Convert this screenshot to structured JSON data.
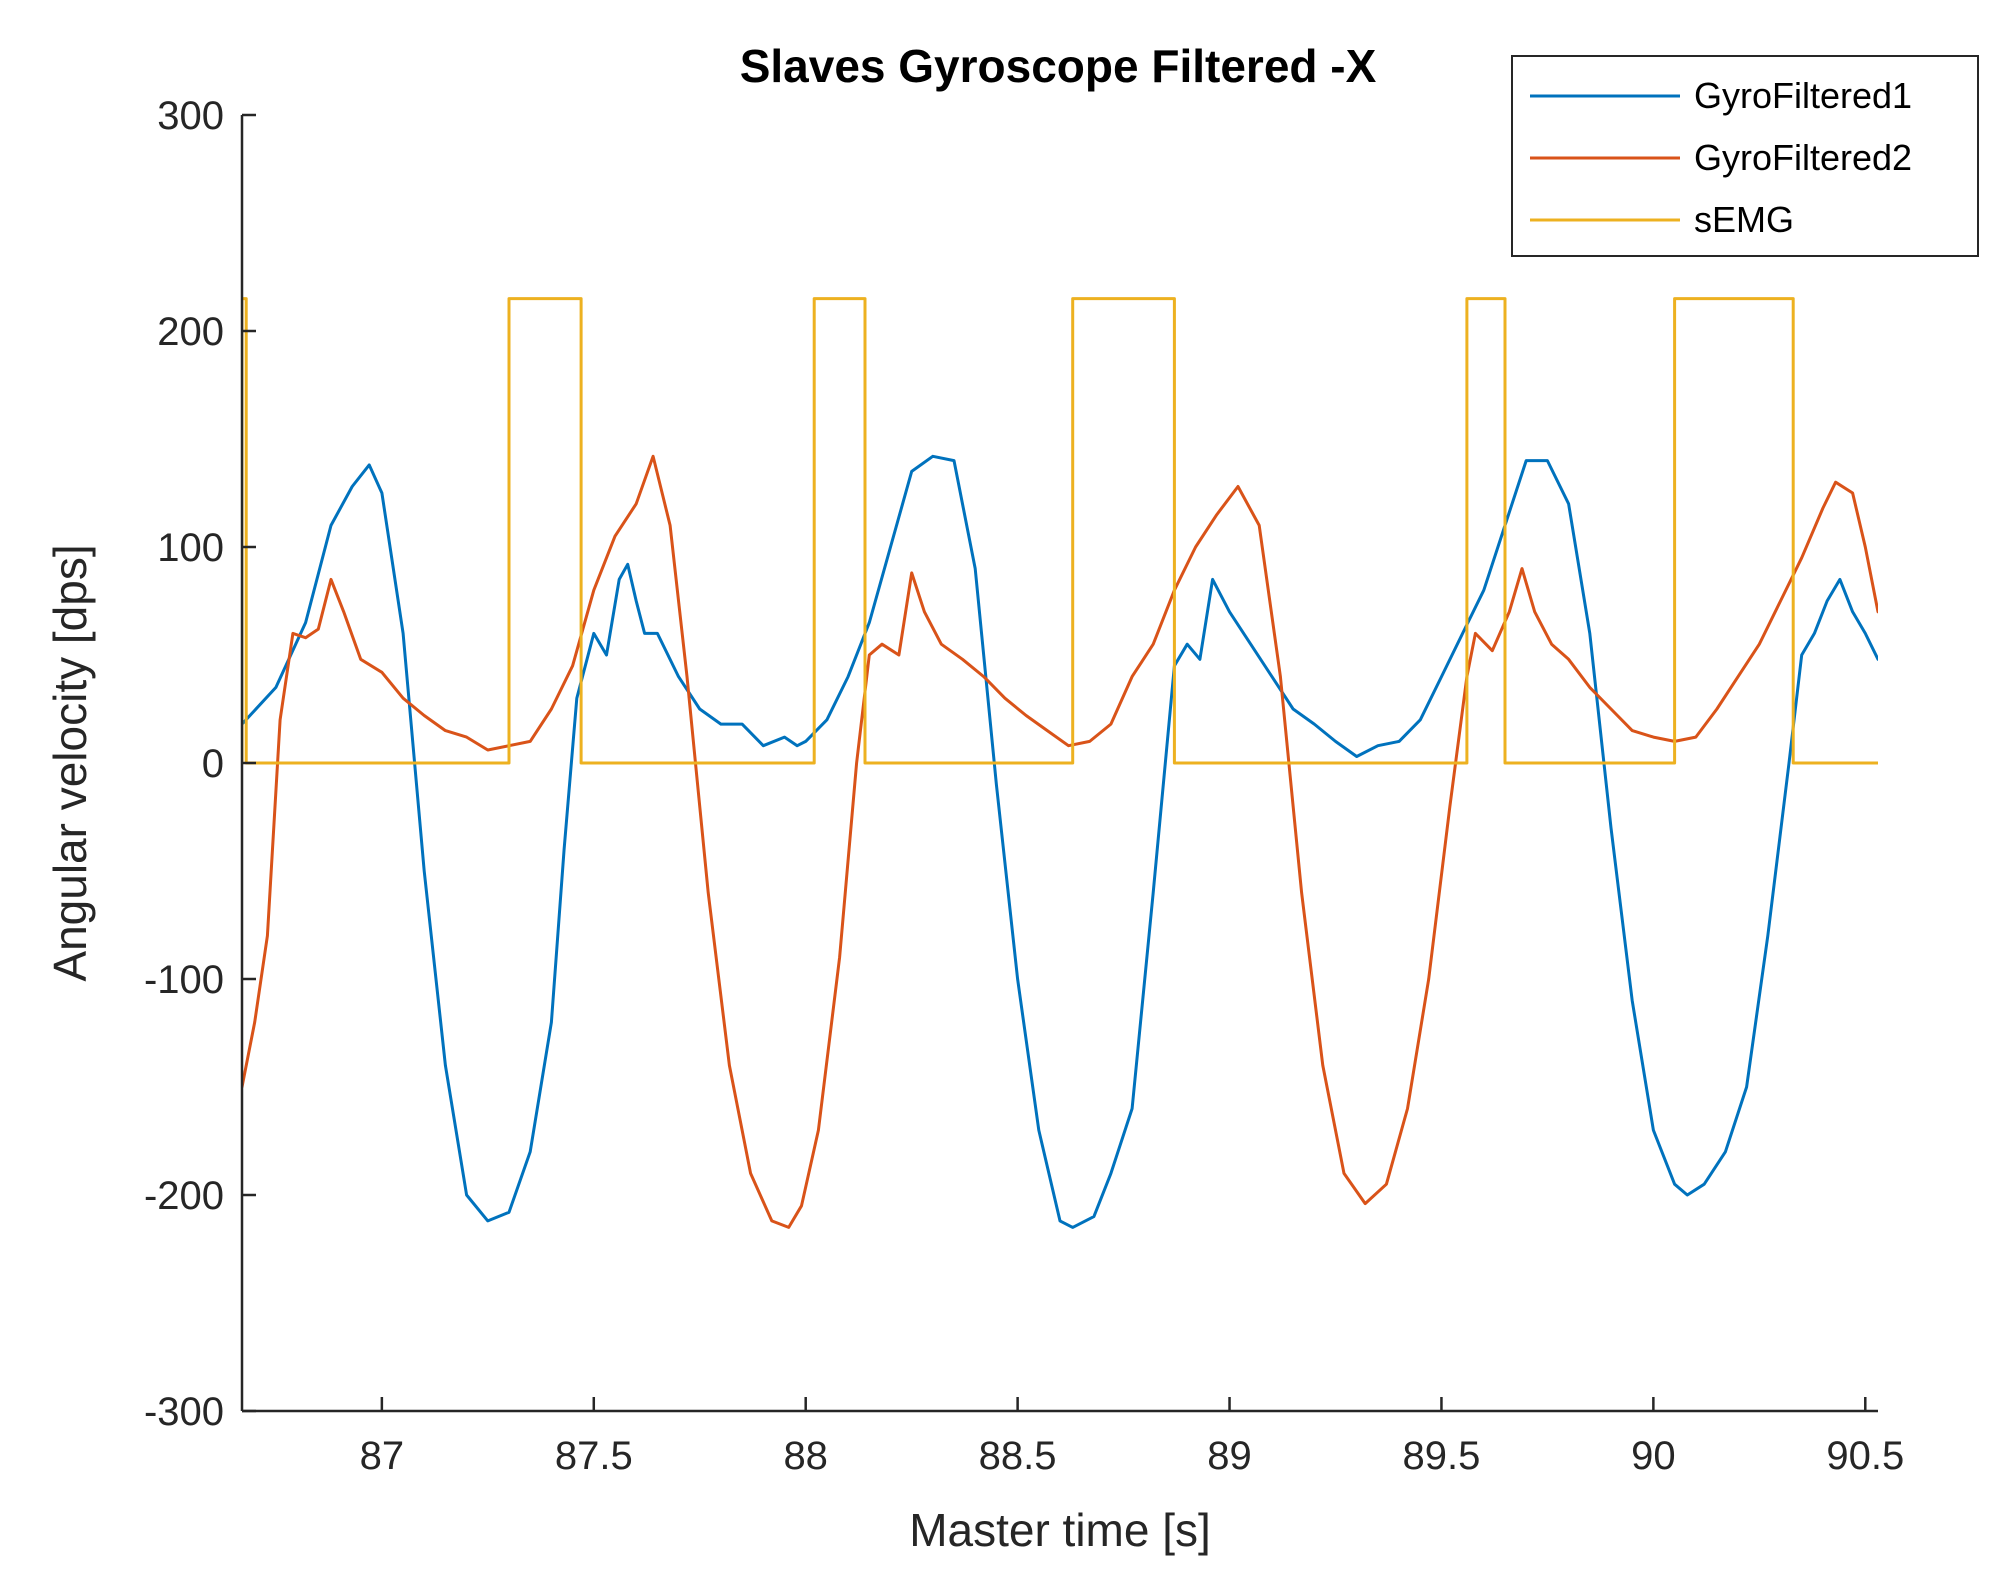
{
  "chart_data": {
    "type": "line",
    "title": "Slaves Gyroscope Filtered -X",
    "xlabel": "Master time [s]",
    "ylabel": "Angular velocity [dps]",
    "xlim": [
      86.67,
      90.53
    ],
    "ylim": [
      -300,
      300
    ],
    "xticks": [
      87,
      87.5,
      88,
      88.5,
      89,
      89.5,
      90,
      90.5
    ],
    "xtick_labels": [
      "87",
      "87.5",
      "88",
      "88.5",
      "89",
      "89.5",
      "90",
      "90.5"
    ],
    "yticks": [
      300,
      200,
      100,
      0,
      -100,
      -200,
      -300
    ],
    "ytick_labels": [
      "300",
      "200",
      "100",
      "0",
      "-100",
      "-200",
      "-300"
    ],
    "grid": false,
    "legend_position": "top-right",
    "series": [
      {
        "name": "GyroFiltered1",
        "color": "#0072BD",
        "x": [
          86.67,
          86.75,
          86.82,
          86.88,
          86.93,
          86.97,
          87.0,
          87.05,
          87.1,
          87.15,
          87.2,
          87.25,
          87.3,
          87.35,
          87.4,
          87.43,
          87.46,
          87.5,
          87.53,
          87.56,
          87.58,
          87.6,
          87.62,
          87.65,
          87.7,
          87.75,
          87.8,
          87.85,
          87.9,
          87.95,
          87.98,
          88.0,
          88.05,
          88.1,
          88.15,
          88.2,
          88.25,
          88.3,
          88.35,
          88.4,
          88.45,
          88.5,
          88.55,
          88.6,
          88.63,
          88.68,
          88.72,
          88.77,
          88.82,
          88.87,
          88.9,
          88.93,
          88.96,
          89.0,
          89.05,
          89.1,
          89.15,
          89.2,
          89.25,
          89.3,
          89.35,
          89.4,
          89.45,
          89.5,
          89.55,
          89.6,
          89.65,
          89.7,
          89.75,
          89.8,
          89.85,
          89.9,
          89.95,
          90.0,
          90.05,
          90.08,
          90.12,
          90.17,
          90.22,
          90.27,
          90.32,
          90.35,
          90.38,
          90.41,
          90.44,
          90.47,
          90.5,
          90.53
        ],
        "values": [
          18,
          35,
          65,
          110,
          128,
          138,
          125,
          60,
          -50,
          -140,
          -200,
          -212,
          -208,
          -180,
          -120,
          -40,
          30,
          60,
          50,
          85,
          92,
          75,
          60,
          60,
          40,
          25,
          18,
          18,
          8,
          12,
          8,
          10,
          20,
          40,
          65,
          100,
          135,
          142,
          140,
          90,
          -10,
          -100,
          -170,
          -212,
          -215,
          -210,
          -190,
          -160,
          -60,
          45,
          55,
          48,
          85,
          70,
          55,
          40,
          25,
          18,
          10,
          3,
          8,
          10,
          20,
          40,
          60,
          80,
          110,
          140,
          140,
          120,
          60,
          -30,
          -110,
          -170,
          -195,
          -200,
          -195,
          -180,
          -150,
          -80,
          0,
          50,
          60,
          75,
          85,
          70,
          60,
          48
        ]
      },
      {
        "name": "GyroFiltered2",
        "color": "#D95319",
        "x": [
          86.67,
          86.7,
          86.73,
          86.76,
          86.79,
          86.82,
          86.85,
          86.88,
          86.91,
          86.95,
          87.0,
          87.05,
          87.1,
          87.15,
          87.2,
          87.25,
          87.3,
          87.35,
          87.4,
          87.45,
          87.5,
          87.55,
          87.6,
          87.64,
          87.68,
          87.72,
          87.77,
          87.82,
          87.87,
          87.92,
          87.96,
          87.99,
          88.03,
          88.08,
          88.12,
          88.15,
          88.18,
          88.22,
          88.25,
          88.28,
          88.32,
          88.37,
          88.42,
          88.47,
          88.52,
          88.57,
          88.62,
          88.67,
          88.72,
          88.77,
          88.82,
          88.87,
          88.92,
          88.97,
          89.02,
          89.07,
          89.12,
          89.17,
          89.22,
          89.27,
          89.32,
          89.37,
          89.42,
          89.47,
          89.52,
          89.56,
          89.58,
          89.62,
          89.66,
          89.69,
          89.72,
          89.76,
          89.8,
          89.85,
          89.9,
          89.95,
          90.0,
          90.05,
          90.1,
          90.15,
          90.2,
          90.25,
          90.3,
          90.35,
          90.4,
          90.43,
          90.47,
          90.5,
          90.53
        ],
        "values": [
          -150,
          -120,
          -80,
          20,
          60,
          58,
          62,
          85,
          70,
          48,
          42,
          30,
          22,
          15,
          12,
          6,
          8,
          10,
          25,
          45,
          80,
          105,
          120,
          142,
          110,
          40,
          -60,
          -140,
          -190,
          -212,
          -215,
          -205,
          -170,
          -90,
          0,
          50,
          55,
          50,
          88,
          70,
          55,
          48,
          40,
          30,
          22,
          15,
          8,
          10,
          18,
          40,
          55,
          80,
          100,
          115,
          128,
          110,
          40,
          -60,
          -140,
          -190,
          -204,
          -195,
          -160,
          -100,
          -20,
          40,
          60,
          52,
          70,
          90,
          70,
          55,
          48,
          35,
          25,
          15,
          12,
          10,
          12,
          25,
          40,
          55,
          75,
          95,
          118,
          130,
          125,
          100,
          70
        ]
      },
      {
        "name": "sEMG",
        "color": "#EDB120",
        "x": [
          86.67,
          86.67,
          86.68,
          86.68,
          87.3,
          87.3,
          87.47,
          87.47,
          88.02,
          88.02,
          88.14,
          88.14,
          88.63,
          88.63,
          88.87,
          88.87,
          89.56,
          89.56,
          89.65,
          89.65,
          90.05,
          90.05,
          90.33,
          90.33,
          90.53
        ],
        "values": [
          0,
          215,
          215,
          0,
          0,
          215,
          215,
          0,
          0,
          215,
          215,
          0,
          0,
          215,
          215,
          0,
          0,
          215,
          215,
          0,
          0,
          215,
          215,
          0,
          0
        ]
      }
    ]
  }
}
